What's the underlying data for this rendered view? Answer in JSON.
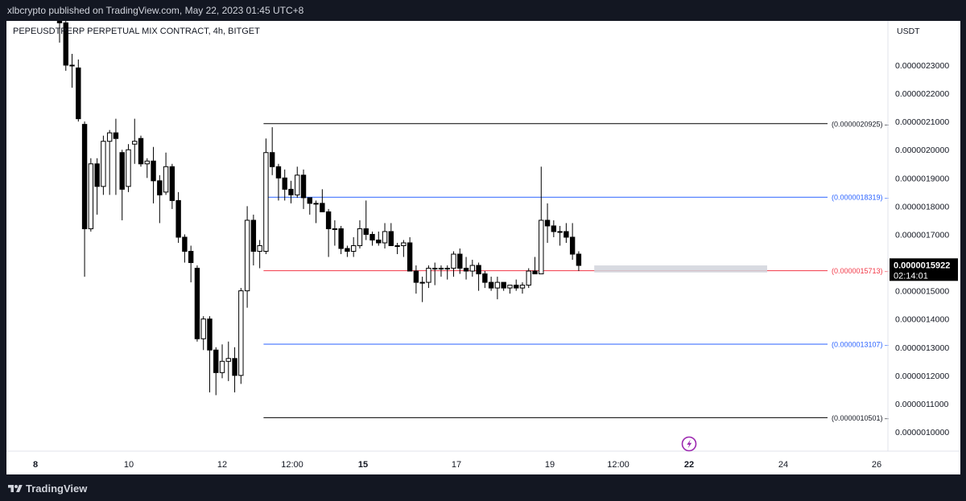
{
  "header": {
    "published_text": "xlbcrypto published on TradingView.com, May 22, 2023 01:45 UTC+8"
  },
  "footer": {
    "brand": "TradingView",
    "logo_icon": "tradingview-logo-icon"
  },
  "colors": {
    "bull_body": "#ffffff",
    "bear_body": "#000000",
    "wick": "#000000",
    "blue_level": "#2962ff",
    "red_level": "#f23645",
    "grid_text": "#131722",
    "price_badge": "#000000",
    "event_icon": "#9c27b0"
  },
  "chart_data": {
    "type": "candlestick",
    "title": "PEPEUSDTPERP PERPETUAL MIX CONTRACT, 4h, BITGET",
    "currency_label": "USDT",
    "ylim": [
      9.5e-07,
      2.4e-06
    ],
    "y_ticks": [
      "0.0000010000",
      "0.0000011000",
      "0.0000012000",
      "0.0000013000",
      "0.0000014000",
      "0.0000015000",
      "0.0000016000",
      "0.0000017000",
      "0.0000018000",
      "0.0000019000",
      "0.0000020000",
      "0.0000021000",
      "0.0000022000",
      "0.0000023000"
    ],
    "x_ticks": [
      "8",
      "10",
      "12",
      "12:00",
      "15",
      "17",
      "19",
      "12:00",
      "22",
      "24",
      "26"
    ],
    "x_tick_bold": [
      "15",
      "22"
    ],
    "last_price": {
      "value": "0.0000015922",
      "countdown": "02:14:01"
    },
    "levels": [
      {
        "label": "(0.0000020925)",
        "value": 2.0925e-06,
        "kind": "black",
        "start_index": 33
      },
      {
        "label": "(0.0000018319)",
        "value": 1.8319e-06,
        "kind": "blue",
        "start_index": 33
      },
      {
        "label": "(0.0000015713)",
        "value": 1.5713e-06,
        "kind": "red",
        "start_index": 33
      },
      {
        "label": "(0.0000013107)",
        "value": 1.3107e-06,
        "kind": "blue",
        "start_index": 33
      },
      {
        "label": "(0.0000010501)",
        "value": 1.0501e-06,
        "kind": "black",
        "start_index": 33
      }
    ],
    "zone": {
      "start_index": 86,
      "end_index": 104,
      "low": 1.565e-06,
      "high": 1.59e-06
    },
    "candles": [
      {
        "o": 2.48,
        "h": 2.52,
        "l": 2.38,
        "c": 2.45
      },
      {
        "o": 2.45,
        "h": 2.47,
        "l": 2.28,
        "c": 2.3
      },
      {
        "o": 2.3,
        "h": 2.34,
        "l": 2.22,
        "c": 2.3
      },
      {
        "o": 2.29,
        "h": 2.32,
        "l": 2.1,
        "c": 2.11
      },
      {
        "o": 2.09,
        "h": 2.1,
        "l": 1.55,
        "c": 1.72
      },
      {
        "o": 1.72,
        "h": 1.97,
        "l": 1.71,
        "c": 1.95
      },
      {
        "o": 1.95,
        "h": 1.97,
        "l": 1.77,
        "c": 1.87
      },
      {
        "o": 1.87,
        "h": 2.05,
        "l": 1.84,
        "c": 2.03
      },
      {
        "o": 2.03,
        "h": 2.07,
        "l": 1.84,
        "c": 2.06
      },
      {
        "o": 2.06,
        "h": 2.11,
        "l": 1.84,
        "c": 2.04
      },
      {
        "o": 1.99,
        "h": 2.0,
        "l": 1.75,
        "c": 1.86
      },
      {
        "o": 1.87,
        "h": 2.02,
        "l": 1.85,
        "c": 2.0
      },
      {
        "o": 2.02,
        "h": 2.11,
        "l": 1.95,
        "c": 2.03
      },
      {
        "o": 2.04,
        "h": 2.05,
        "l": 1.94,
        "c": 1.95
      },
      {
        "o": 1.95,
        "h": 1.97,
        "l": 1.9,
        "c": 1.96
      },
      {
        "o": 1.96,
        "h": 2.01,
        "l": 1.81,
        "c": 1.89
      },
      {
        "o": 1.89,
        "h": 1.91,
        "l": 1.74,
        "c": 1.84
      },
      {
        "o": 1.85,
        "h": 1.99,
        "l": 1.84,
        "c": 1.94
      },
      {
        "o": 1.94,
        "h": 1.95,
        "l": 1.79,
        "c": 1.82
      },
      {
        "o": 1.82,
        "h": 1.85,
        "l": 1.67,
        "c": 1.69
      },
      {
        "o": 1.69,
        "h": 1.7,
        "l": 1.6,
        "c": 1.64
      },
      {
        "o": 1.64,
        "h": 1.66,
        "l": 1.53,
        "c": 1.6
      },
      {
        "o": 1.58,
        "h": 1.59,
        "l": 1.32,
        "c": 1.33
      },
      {
        "o": 1.33,
        "h": 1.41,
        "l": 1.29,
        "c": 1.4
      },
      {
        "o": 1.4,
        "h": 1.41,
        "l": 1.14,
        "c": 1.29
      },
      {
        "o": 1.29,
        "h": 1.3,
        "l": 1.13,
        "c": 1.21
      },
      {
        "o": 1.21,
        "h": 1.31,
        "l": 1.19,
        "c": 1.25
      },
      {
        "o": 1.25,
        "h": 1.32,
        "l": 1.18,
        "c": 1.26
      },
      {
        "o": 1.26,
        "h": 1.3,
        "l": 1.14,
        "c": 1.2
      },
      {
        "o": 1.2,
        "h": 1.51,
        "l": 1.17,
        "c": 1.5
      },
      {
        "o": 1.5,
        "h": 1.8,
        "l": 1.44,
        "c": 1.75
      },
      {
        "o": 1.75,
        "h": 1.77,
        "l": 1.59,
        "c": 1.64
      },
      {
        "o": 1.64,
        "h": 1.68,
        "l": 1.58,
        "c": 1.66
      },
      {
        "o": 1.64,
        "h": 2.04,
        "l": 1.63,
        "c": 1.99
      },
      {
        "o": 1.99,
        "h": 2.08,
        "l": 1.91,
        "c": 1.94
      },
      {
        "o": 1.94,
        "h": 1.95,
        "l": 1.82,
        "c": 1.9
      },
      {
        "o": 1.9,
        "h": 1.93,
        "l": 1.82,
        "c": 1.86
      },
      {
        "o": 1.86,
        "h": 1.89,
        "l": 1.81,
        "c": 1.84
      },
      {
        "o": 1.84,
        "h": 1.94,
        "l": 1.83,
        "c": 1.91
      },
      {
        "o": 1.91,
        "h": 1.93,
        "l": 1.79,
        "c": 1.83
      },
      {
        "o": 1.83,
        "h": 1.83,
        "l": 1.77,
        "c": 1.81
      },
      {
        "o": 1.81,
        "h": 1.82,
        "l": 1.74,
        "c": 1.81
      },
      {
        "o": 1.81,
        "h": 1.86,
        "l": 1.78,
        "c": 1.78
      },
      {
        "o": 1.78,
        "h": 1.79,
        "l": 1.62,
        "c": 1.72
      },
      {
        "o": 1.72,
        "h": 1.75,
        "l": 1.66,
        "c": 1.72
      },
      {
        "o": 1.72,
        "h": 1.73,
        "l": 1.63,
        "c": 1.65
      },
      {
        "o": 1.65,
        "h": 1.66,
        "l": 1.62,
        "c": 1.64
      },
      {
        "o": 1.64,
        "h": 1.69,
        "l": 1.62,
        "c": 1.66
      },
      {
        "o": 1.66,
        "h": 1.75,
        "l": 1.65,
        "c": 1.72
      },
      {
        "o": 1.72,
        "h": 1.82,
        "l": 1.68,
        "c": 1.7
      },
      {
        "o": 1.7,
        "h": 1.71,
        "l": 1.66,
        "c": 1.68
      },
      {
        "o": 1.68,
        "h": 1.71,
        "l": 1.66,
        "c": 1.67
      },
      {
        "o": 1.67,
        "h": 1.74,
        "l": 1.65,
        "c": 1.71
      },
      {
        "o": 1.71,
        "h": 1.74,
        "l": 1.66,
        "c": 1.66
      },
      {
        "o": 1.66,
        "h": 1.67,
        "l": 1.63,
        "c": 1.66
      },
      {
        "o": 1.66,
        "h": 1.68,
        "l": 1.62,
        "c": 1.67
      },
      {
        "o": 1.67,
        "h": 1.69,
        "l": 1.57,
        "c": 1.57
      },
      {
        "o": 1.57,
        "h": 1.59,
        "l": 1.49,
        "c": 1.53
      },
      {
        "o": 1.53,
        "h": 1.55,
        "l": 1.46,
        "c": 1.53
      },
      {
        "o": 1.53,
        "h": 1.59,
        "l": 1.51,
        "c": 1.58
      },
      {
        "o": 1.58,
        "h": 1.6,
        "l": 1.52,
        "c": 1.58
      },
      {
        "o": 1.58,
        "h": 1.59,
        "l": 1.55,
        "c": 1.58
      },
      {
        "o": 1.58,
        "h": 1.59,
        "l": 1.54,
        "c": 1.58
      },
      {
        "o": 1.58,
        "h": 1.64,
        "l": 1.55,
        "c": 1.63
      },
      {
        "o": 1.63,
        "h": 1.65,
        "l": 1.56,
        "c": 1.58
      },
      {
        "o": 1.58,
        "h": 1.62,
        "l": 1.54,
        "c": 1.57
      },
      {
        "o": 1.57,
        "h": 1.61,
        "l": 1.55,
        "c": 1.59
      },
      {
        "o": 1.59,
        "h": 1.6,
        "l": 1.5,
        "c": 1.56
      },
      {
        "o": 1.56,
        "h": 1.57,
        "l": 1.51,
        "c": 1.53
      },
      {
        "o": 1.53,
        "h": 1.55,
        "l": 1.5,
        "c": 1.51
      },
      {
        "o": 1.51,
        "h": 1.55,
        "l": 1.47,
        "c": 1.53
      },
      {
        "o": 1.53,
        "h": 1.53,
        "l": 1.5,
        "c": 1.51
      },
      {
        "o": 1.51,
        "h": 1.52,
        "l": 1.49,
        "c": 1.52
      },
      {
        "o": 1.52,
        "h": 1.54,
        "l": 1.5,
        "c": 1.51
      },
      {
        "o": 1.51,
        "h": 1.53,
        "l": 1.49,
        "c": 1.52
      },
      {
        "o": 1.52,
        "h": 1.58,
        "l": 1.51,
        "c": 1.57
      },
      {
        "o": 1.57,
        "h": 1.62,
        "l": 1.56,
        "c": 1.56
      },
      {
        "o": 1.56,
        "h": 1.94,
        "l": 1.56,
        "c": 1.75
      },
      {
        "o": 1.75,
        "h": 1.81,
        "l": 1.67,
        "c": 1.73
      },
      {
        "o": 1.73,
        "h": 1.75,
        "l": 1.69,
        "c": 1.71
      },
      {
        "o": 1.71,
        "h": 1.73,
        "l": 1.66,
        "c": 1.71
      },
      {
        "o": 1.71,
        "h": 1.74,
        "l": 1.67,
        "c": 1.69
      },
      {
        "o": 1.69,
        "h": 1.74,
        "l": 1.61,
        "c": 1.63
      },
      {
        "o": 1.63,
        "h": 1.64,
        "l": 1.57,
        "c": 1.59
      }
    ]
  }
}
